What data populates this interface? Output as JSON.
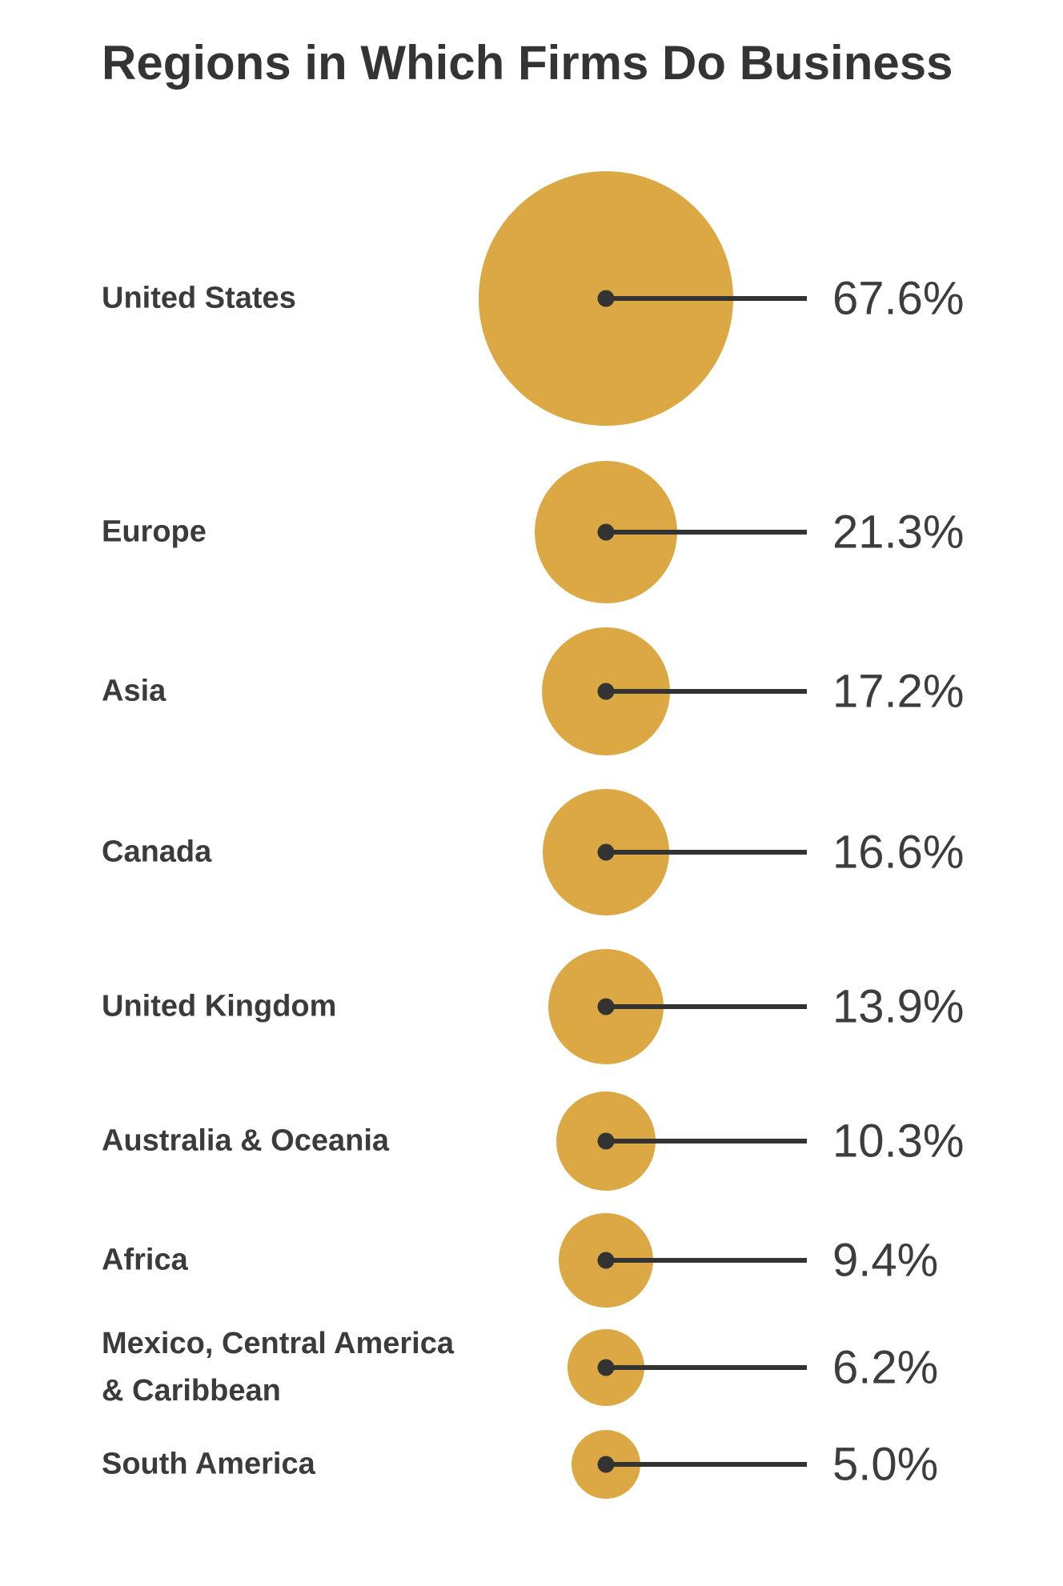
{
  "chart_data": {
    "type": "bubble",
    "title": "Regions in Which Firms Do Business",
    "unit": "%",
    "grid": false,
    "legend": "none",
    "categories": [
      "United States",
      "Europe",
      "Asia",
      "Canada",
      "United Kingdom",
      "Australia & Oceania",
      "Africa",
      "Mexico, Central America & Caribbean",
      "South America"
    ],
    "values": [
      67.6,
      21.3,
      17.2,
      16.6,
      13.9,
      10.3,
      9.4,
      6.2,
      5.0
    ],
    "rows": [
      {
        "label": "United States",
        "value": 67.6,
        "value_label": "67.6%"
      },
      {
        "label": "Europe",
        "value": 21.3,
        "value_label": "21.3%"
      },
      {
        "label": "Asia",
        "value": 17.2,
        "value_label": "17.2%"
      },
      {
        "label": "Canada",
        "value": 16.6,
        "value_label": "16.6%"
      },
      {
        "label": "United Kingdom",
        "value": 13.9,
        "value_label": "13.9%"
      },
      {
        "label": "Australia & Oceania",
        "value": 10.3,
        "value_label": "10.3%"
      },
      {
        "label": "Africa",
        "value": 9.4,
        "value_label": "9.4%"
      },
      {
        "label": "Mexico, Central America\n& Caribbean",
        "value": 6.2,
        "value_label": "6.2%"
      },
      {
        "label": "South America",
        "value": 5.0,
        "value_label": "5.0%"
      }
    ],
    "colors": {
      "bubble": "#DBA843",
      "leader_line": "#333333",
      "center_dot": "#333333",
      "title_text": "#343434",
      "label_text": "#3B3B3B",
      "value_text": "#3D3D3D",
      "background": "#FFFFFF"
    }
  }
}
